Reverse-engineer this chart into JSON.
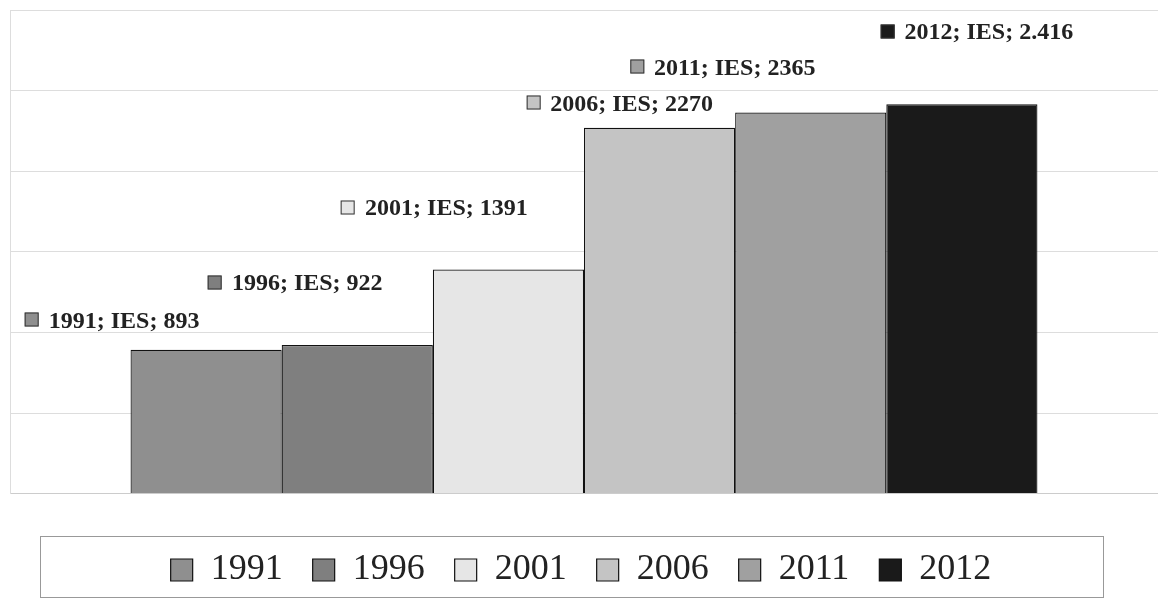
{
  "chart_data": {
    "type": "bar",
    "categories": [
      null
    ],
    "series": [
      {
        "name": "1991",
        "color": "#8f8f8f",
        "values": [
          893
        ],
        "value_labels": [
          "1991; IES; 893"
        ]
      },
      {
        "name": "1996",
        "color": "#7f7f7f",
        "values": [
          922
        ],
        "value_labels": [
          "1996; IES; 922"
        ]
      },
      {
        "name": "2001",
        "color": "#e6e6e6",
        "values": [
          1391
        ],
        "value_labels": [
          "2001; IES; 1391"
        ]
      },
      {
        "name": "2006",
        "color": "#c4c4c4",
        "values": [
          2270
        ],
        "value_labels": [
          "2006; IES; 2270"
        ]
      },
      {
        "name": "2011",
        "color": "#a0a0a0",
        "values": [
          2365
        ],
        "value_labels": [
          "2011; IES; 2365"
        ]
      },
      {
        "name": "2012",
        "color": "#1a1a1a",
        "values": [
          2416
        ],
        "value_labels": [
          "2012; IES; 2.416"
        ]
      }
    ],
    "ylim": [
      0,
      3000
    ],
    "yticks": [
      {
        "value": 0,
        "label": null
      },
      {
        "value": 500,
        "label": null
      },
      {
        "value": 1000,
        "label": null
      },
      {
        "value": 1500,
        "label": null
      },
      {
        "value": 2000,
        "label": null
      },
      {
        "value": 2500,
        "label": null
      },
      {
        "value": 3000,
        "label": null
      }
    ],
    "grid": "y",
    "legend": "bottom"
  }
}
